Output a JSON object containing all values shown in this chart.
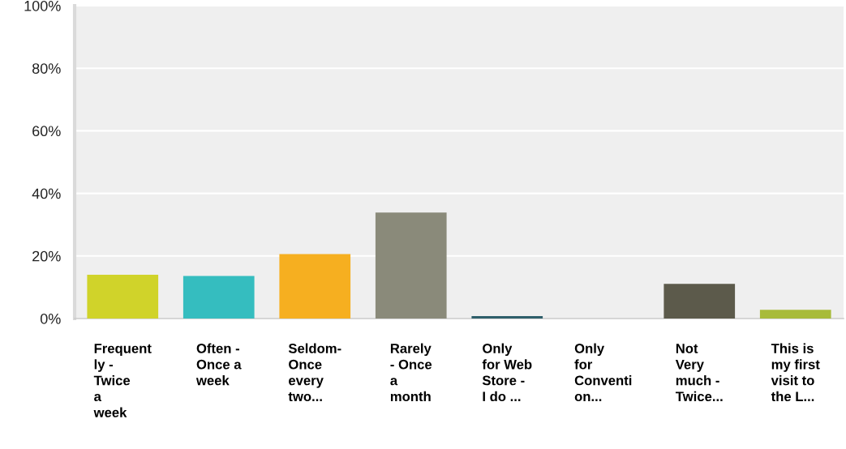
{
  "chart_data": {
    "type": "bar",
    "categories": [
      "Frequent\nly -\nTwice\na\nweek",
      "Often -\nOnce a\nweek",
      "Seldom-\nOnce\nevery\ntwo...",
      "Rarely\n- Once\na\nmonth",
      "Only\nfor Web\nStore -\nI do ...",
      "Only\nfor\nConventi\non...",
      "Not\nVery\nmuch -\nTwice...",
      "This is\nmy first\nvisit to\nthe L..."
    ],
    "values": [
      14.0,
      13.6,
      20.6,
      33.9,
      0.8,
      0,
      11.1,
      2.8
    ],
    "colors": [
      "#d0d32a",
      "#35bdbf",
      "#f6af20",
      "#8a8a7a",
      "#2f5f6b",
      "#d6486b",
      "#5c5a4b",
      "#a8bb3a"
    ],
    "ylim": [
      0,
      100
    ],
    "yticks": [
      {
        "value": 0,
        "label": "0%"
      },
      {
        "value": 20,
        "label": "20%"
      },
      {
        "value": 40,
        "label": "40%"
      },
      {
        "value": 60,
        "label": "60%"
      },
      {
        "value": 80,
        "label": "80%"
      },
      {
        "value": 100,
        "label": "100%"
      }
    ],
    "grid": "y"
  }
}
